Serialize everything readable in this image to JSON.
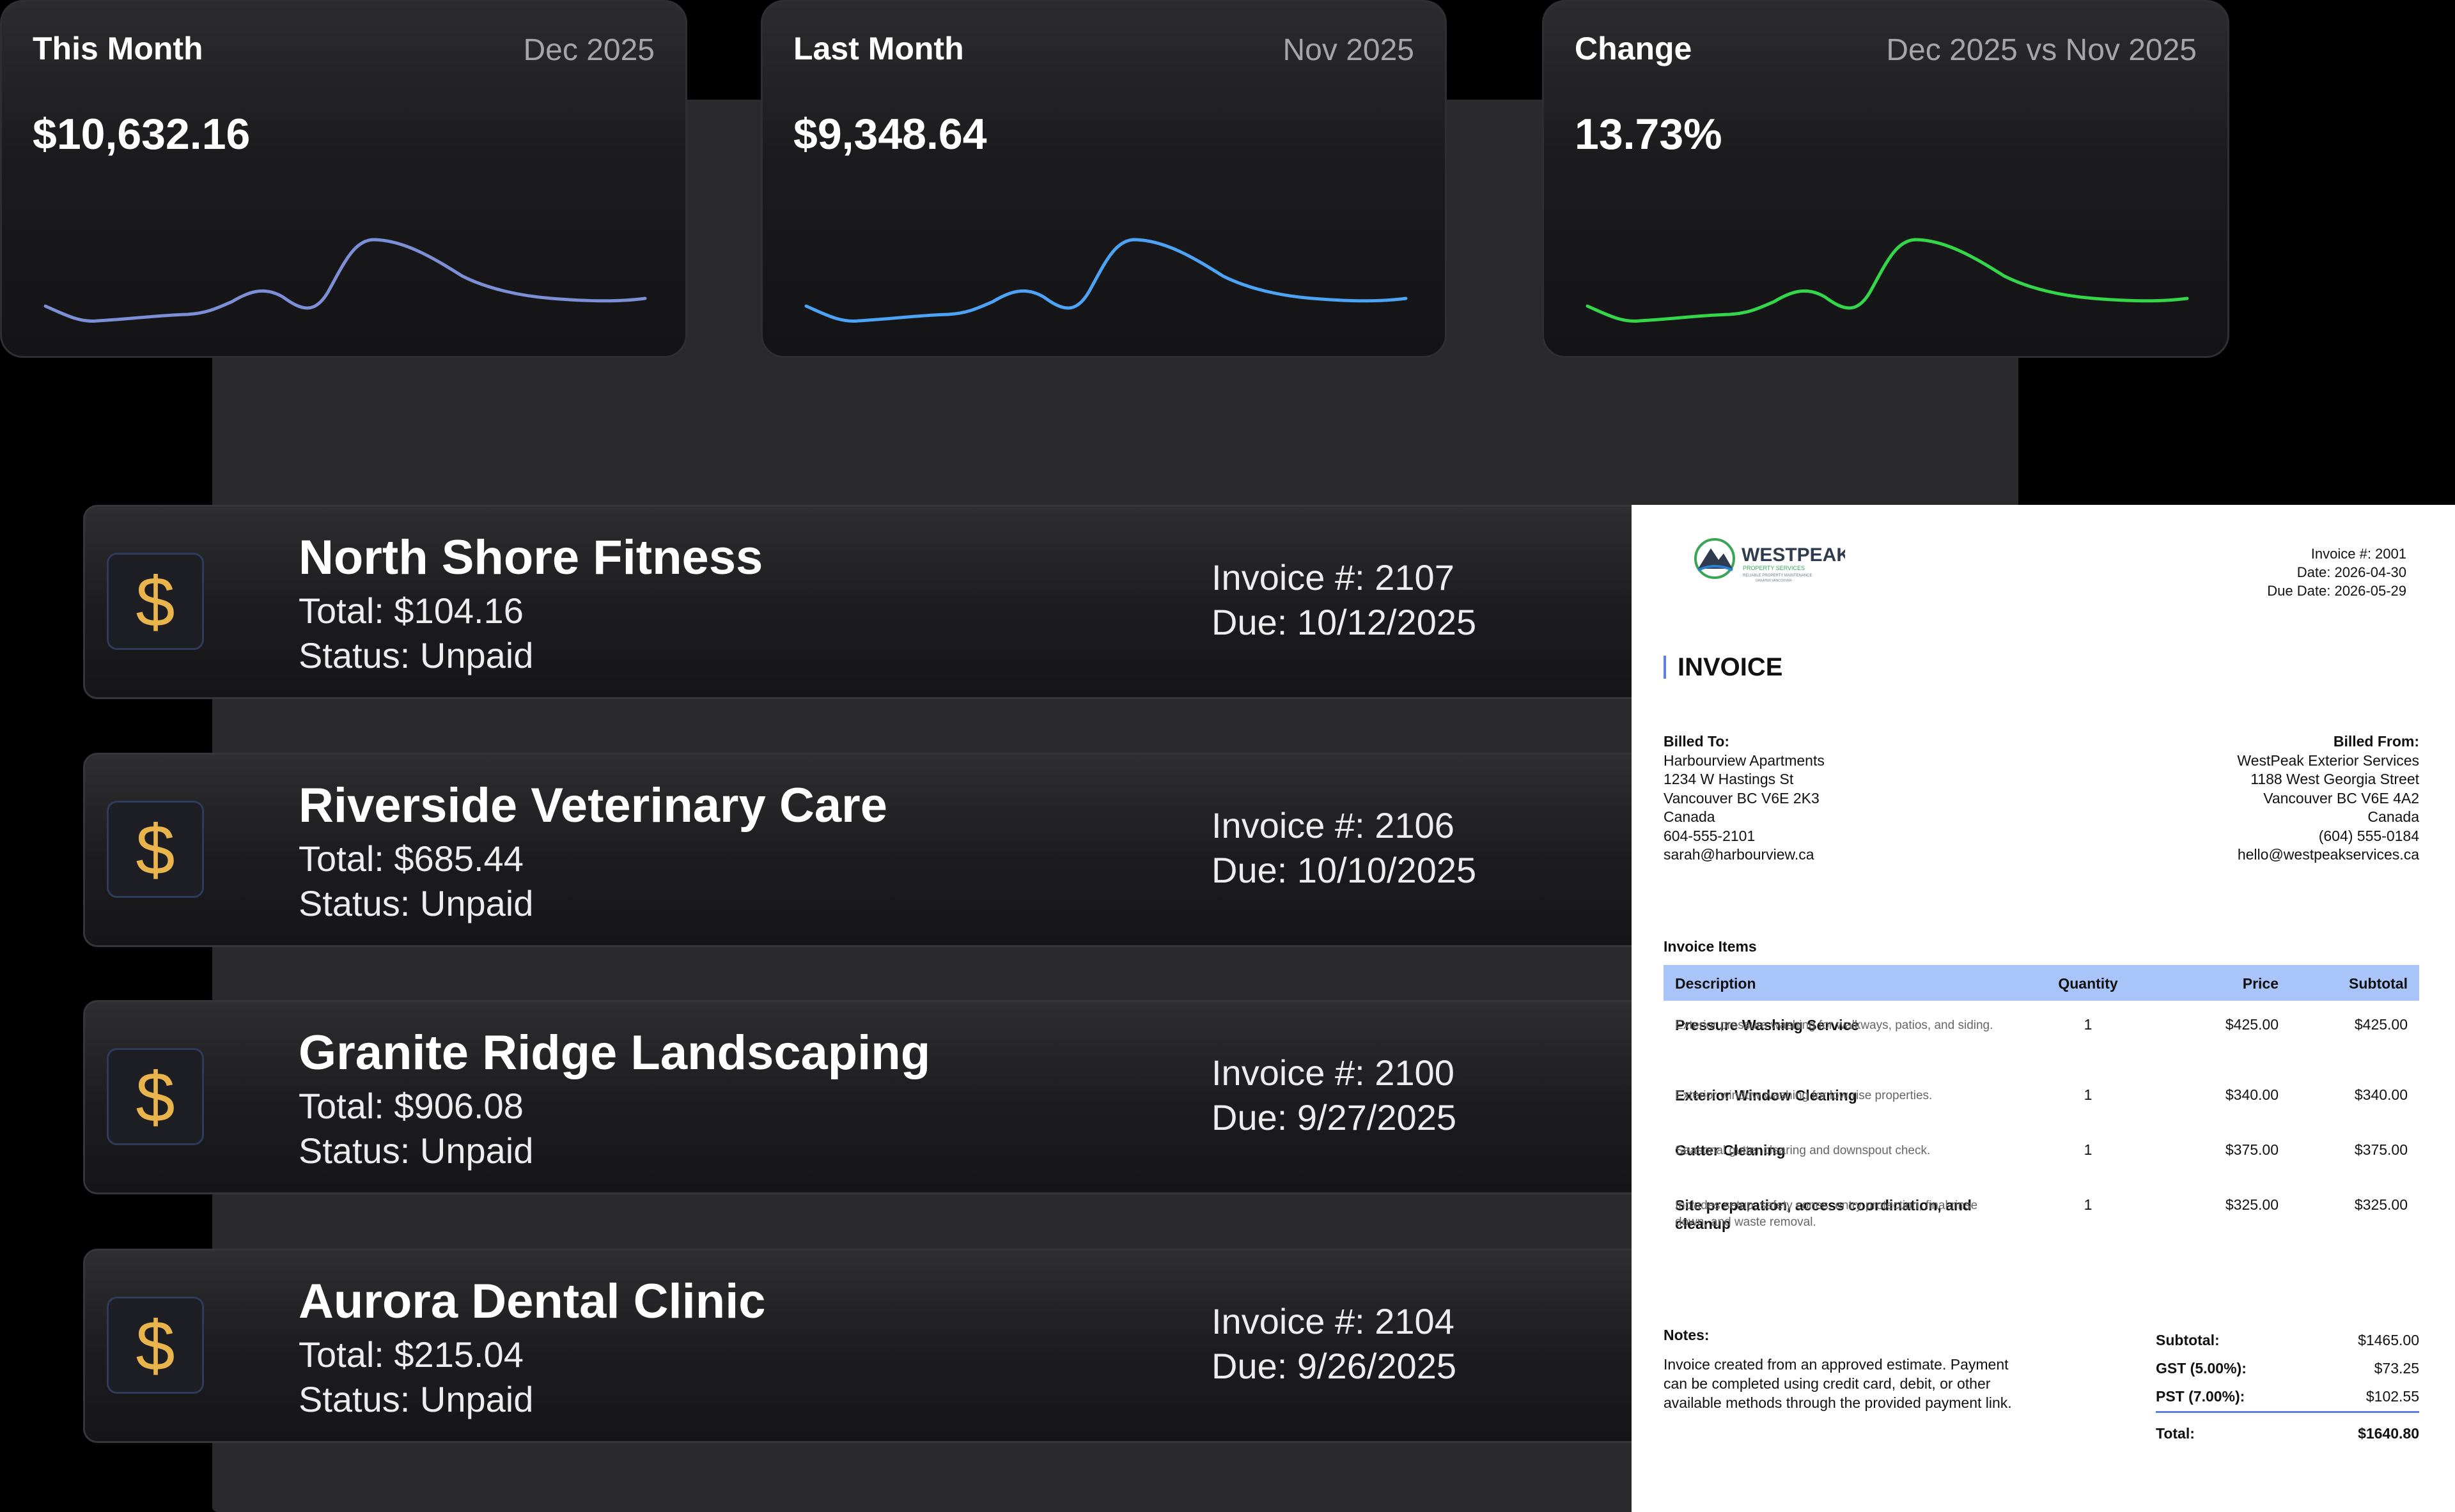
{
  "stats": [
    {
      "title": "This Month",
      "period": "Dec 2025",
      "value": "$10,632.16",
      "color": "#7d8fd6"
    },
    {
      "title": "Last Month",
      "period": "Nov 2025",
      "value": "$9,348.64",
      "color": "#4da3f5"
    },
    {
      "title": "Change",
      "period": "Dec 2025 vs Nov 2025",
      "value": "13.73%",
      "color": "#34d64a"
    }
  ],
  "invoices": [
    {
      "name": "North Shore Fitness",
      "total": "Total: $104.16",
      "status": "Status: Unpaid",
      "number": "Invoice #: 2107",
      "due": "Due: 10/12/2025"
    },
    {
      "name": "Riverside Veterinary Care",
      "total": "Total: $685.44",
      "status": "Status: Unpaid",
      "number": "Invoice #: 2106",
      "due": "Due: 10/10/2025"
    },
    {
      "name": "Granite Ridge Landscaping",
      "total": "Total: $906.08",
      "status": "Status: Unpaid",
      "number": "Invoice #: 2100",
      "due": "Due: 9/27/2025"
    },
    {
      "name": "Aurora Dental Clinic",
      "total": "Total: $215.04",
      "status": "Status: Unpaid",
      "number": "Invoice #: 2104",
      "due": "Due: 9/26/2025"
    }
  ],
  "icon": {
    "name": "dollar-icon",
    "glyph": "$"
  },
  "document": {
    "logo_title": "WESTPEAK",
    "logo_subtitle": "PROPERTY SERVICES",
    "logo_tagline": "RELIABLE PROPERTY MAINTENANCE",
    "logo_tagline2": "GREATER VANCOUVER",
    "invoice_no": "Invoice #: 2001",
    "date": "Date: 2026-04-30",
    "due_date": "Due Date: 2026-05-29",
    "title": "INVOICE",
    "billed_to_label": "Billed To:",
    "billed_to": [
      "Harbourview Apartments",
      "1234 W Hastings St",
      "Vancouver BC V6E 2K3",
      "Canada",
      "604-555-2101",
      "sarah@harbourview.ca"
    ],
    "billed_from_label": "Billed From:",
    "billed_from": [
      "WestPeak Exterior Services",
      "1188 West Georgia Street",
      "Vancouver BC V6E 4A2",
      "Canada",
      "(604) 555-0184",
      "hello@westpeakservices.ca"
    ],
    "items_label": "Invoice Items",
    "headers": {
      "description": "Description",
      "quantity": "Quantity",
      "price": "Price",
      "subtotal": "Subtotal"
    },
    "items": [
      {
        "title": "Pressure Washing Service",
        "desc": "Exterior pressure washing for walkways, patios, and siding.",
        "qty": "1",
        "price": "$425.00",
        "subtotal": "$425.00"
      },
      {
        "title": "Exterior Window Cleaning",
        "desc": "Exterior window washing for low-rise properties.",
        "qty": "1",
        "price": "$340.00",
        "subtotal": "$340.00"
      },
      {
        "title": "Gutter Cleaning",
        "desc": "Seasonal gutter clearing and downspout check.",
        "qty": "1",
        "price": "$375.00",
        "subtotal": "$375.00"
      },
      {
        "title": "Site preparation, access coordination, and cleanup",
        "desc": "Includes setup, safety cones, entry protection, final rinse down, and waste removal.",
        "qty": "1",
        "price": "$325.00",
        "subtotal": "$325.00"
      }
    ],
    "notes_label": "Notes:",
    "notes": "Invoice created from an approved estimate. Payment can be completed using credit card, debit, or other available methods through the provided payment link.",
    "totals": [
      {
        "k": "Subtotal:",
        "v": "$1465.00"
      },
      {
        "k": "GST (5.00%):",
        "v": "$73.25"
      },
      {
        "k": "PST (7.00%):",
        "v": "$102.55"
      },
      {
        "k": "Total:",
        "v": "$1640.80"
      }
    ]
  }
}
